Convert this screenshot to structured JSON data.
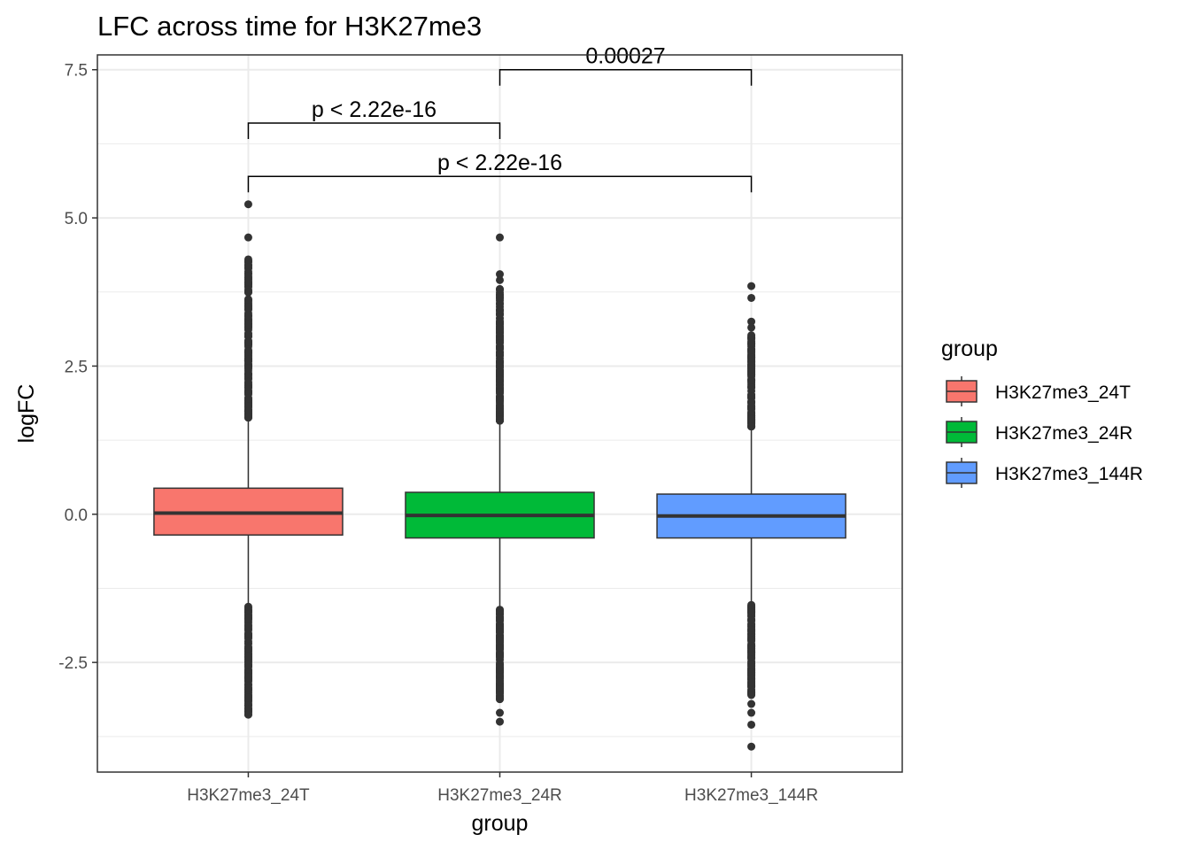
{
  "chart_data": {
    "type": "box",
    "title": "LFC across time for H3K27me3",
    "xlabel": "group",
    "ylabel": "logFC",
    "ylim": [
      -4.35,
      7.75
    ],
    "y_ticks": [
      -2.5,
      0.0,
      2.5,
      5.0,
      7.5
    ],
    "y_tick_labels": [
      "-2.5",
      "0.0",
      "2.5",
      "5.0",
      "7.5"
    ],
    "grid": true,
    "legend": {
      "title": "group",
      "position": "right",
      "entries": [
        "H3K27me3_24T",
        "H3K27me3_24R",
        "H3K27me3_144R"
      ]
    },
    "categories": [
      "H3K27me3_24T",
      "H3K27me3_24R",
      "H3K27me3_144R"
    ],
    "series": [
      {
        "name": "H3K27me3_24T",
        "color": "#F8766D",
        "q1": -0.35,
        "median": 0.02,
        "q3": 0.44,
        "whisker_low": -1.53,
        "whisker_high": 1.62,
        "outliers_low_range": [
          -3.38,
          -1.56
        ],
        "outliers_high_range": [
          1.63,
          4.3
        ],
        "outliers_extra": [
          4.67,
          5.23,
          -3.38
        ]
      },
      {
        "name": "H3K27me3_24R",
        "color": "#00BA38",
        "q1": -0.4,
        "median": -0.02,
        "q3": 0.37,
        "whisker_low": -1.58,
        "whisker_high": 1.55,
        "outliers_low_range": [
          -3.12,
          -1.61
        ],
        "outliers_high_range": [
          1.58,
          3.8
        ],
        "outliers_extra": [
          4.67,
          4.05,
          3.95,
          -3.35,
          -3.5
        ]
      },
      {
        "name": "H3K27me3_144R",
        "color": "#619CFF",
        "q1": -0.4,
        "median": -0.03,
        "q3": 0.34,
        "whisker_low": -1.5,
        "whisker_high": 1.45,
        "outliers_low_range": [
          -3.05,
          -1.53
        ],
        "outliers_high_range": [
          1.48,
          3.02
        ],
        "outliers_extra": [
          3.85,
          3.65,
          3.25,
          3.15,
          -3.2,
          -3.35,
          -3.55,
          -3.92
        ]
      }
    ],
    "comparisons": [
      {
        "groups": [
          "H3K27me3_24T",
          "H3K27me3_24R"
        ],
        "label": "p < 2.22e-16",
        "y": 6.6
      },
      {
        "groups": [
          "H3K27me3_24T",
          "H3K27me3_144R"
        ],
        "label": "p < 2.22e-16",
        "y": 5.7
      },
      {
        "groups": [
          "H3K27me3_24R",
          "H3K27me3_144R"
        ],
        "label": "0.00027",
        "y": 7.5
      }
    ]
  }
}
